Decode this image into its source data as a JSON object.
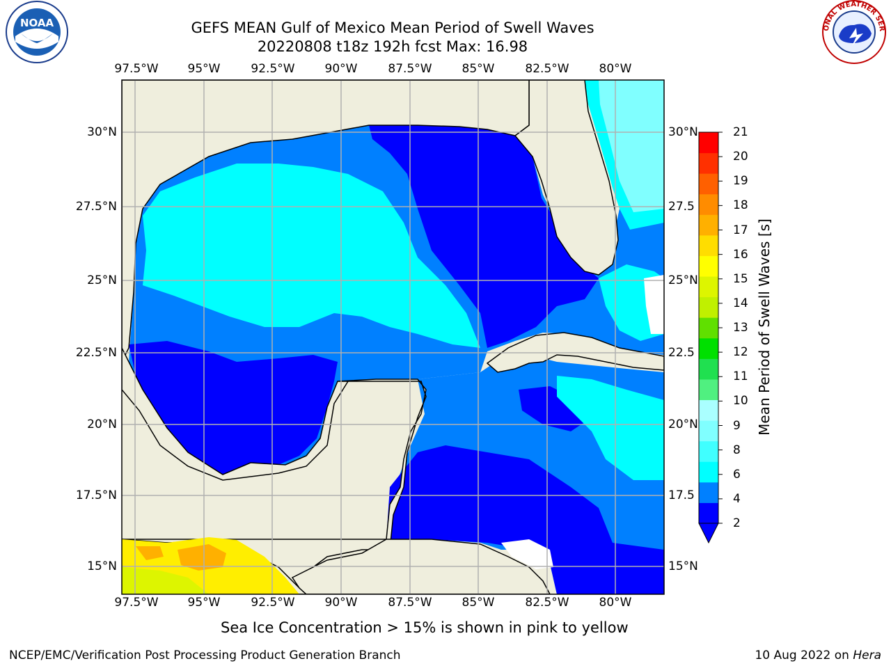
{
  "title_line1": "GEFS MEAN Gulf of Mexico Mean Period of Swell Waves",
  "title_line2": "20220808 t18z 192h fcst   Max: 16.98",
  "lon_labels": [
    "97.5°W",
    "95°W",
    "92.5°W",
    "90°W",
    "87.5°W",
    "85°W",
    "82.5°W",
    "80°W"
  ],
  "lat_labels_left": [
    "30°N",
    "27.5°N",
    "25°N",
    "22.5°N",
    "20°N",
    "17.5°N",
    "15°N"
  ],
  "lat_labels_right": [
    "30°N",
    "27.5",
    "25°N",
    "22.5",
    "20°N",
    "17.5",
    "15°N"
  ],
  "colorbar": {
    "title": "Mean Period of Swell Waves [s]",
    "ticks": [
      "21",
      "20",
      "19",
      "18",
      "17",
      "16",
      "15",
      "14",
      "13",
      "12",
      "11",
      "10",
      "9",
      "8",
      "6",
      "4",
      "2"
    ],
    "colors": [
      "#0000ff",
      "#0080ff",
      "#00ffff",
      "#40ffff",
      "#80ffff",
      "#aaffff",
      "#50f080",
      "#20e050",
      "#00e000",
      "#60e000",
      "#c0f000",
      "#ddf500",
      "#ffff00",
      "#ffdd00",
      "#ffb000",
      "#ff8c00",
      "#ff6000",
      "#ff3000",
      "#ff0000"
    ]
  },
  "ice_note": "Sea Ice Concentration > 15% is shown in pink to yellow",
  "credit": "NCEP/EMC/Verification Post Processing Product Generation Branch",
  "date_prefix": "10 Aug 2022 on ",
  "date_machine": "Hera",
  "logos": {
    "left": "NOAA",
    "right": "NATIONAL WEATHER SERVICE"
  },
  "colors": {
    "land": "#efeedd",
    "deep_blue": "#0000ff",
    "mid_blue": "#0080ff",
    "cyan": "#00ffff",
    "light_cyan": "#80ffff",
    "grid": "#b0b0b0"
  }
}
